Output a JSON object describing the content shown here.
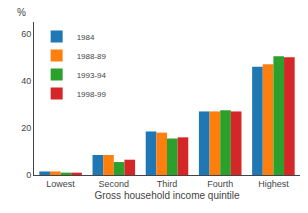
{
  "chart_data": {
    "type": "bar",
    "categories": [
      "Lowest",
      "Second",
      "Third",
      "Fourth",
      "Highest"
    ],
    "series": [
      {
        "name": "1984",
        "values": [
          1.5,
          8.5,
          18.5,
          27.0,
          46.0
        ]
      },
      {
        "name": "1988-89",
        "values": [
          1.5,
          8.5,
          18.0,
          27.0,
          47.0
        ]
      },
      {
        "name": "1993-94",
        "values": [
          1.0,
          5.5,
          15.5,
          27.5,
          50.5
        ]
      },
      {
        "name": "1998-99",
        "values": [
          1.0,
          6.5,
          16.0,
          27.0,
          50.0
        ]
      }
    ],
    "xlabel": "Gross household income quintile",
    "ylabel": "%",
    "ylim": [
      0,
      65
    ],
    "yticks": [
      0,
      20,
      40,
      60
    ],
    "grid": false,
    "legend": "upper left"
  }
}
